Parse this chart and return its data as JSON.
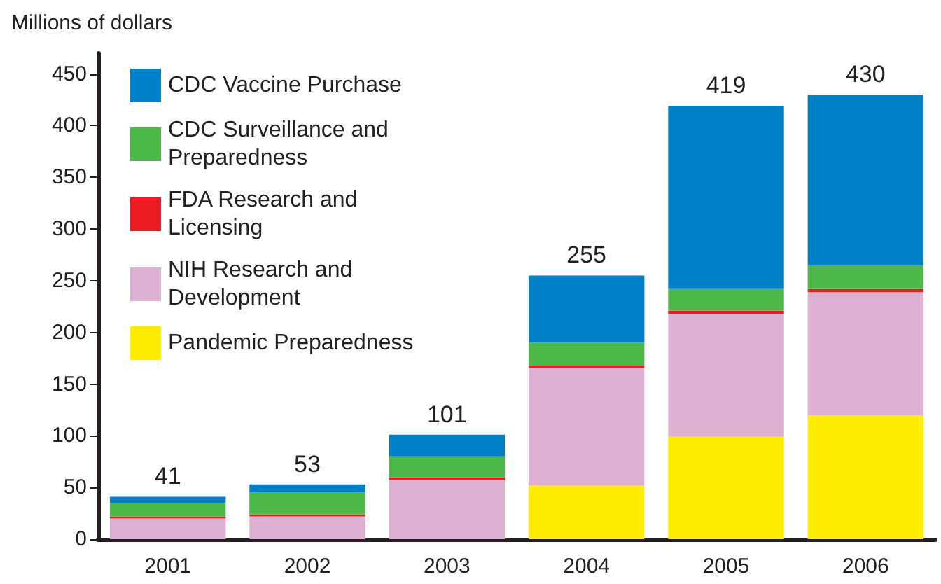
{
  "chart_data": {
    "type": "bar",
    "stacked": true,
    "ylabel": "Millions of dollars",
    "categories": [
      "2001",
      "2002",
      "2003",
      "2004",
      "2005",
      "2006"
    ],
    "series": [
      {
        "name": "Pandemic Preparedness",
        "color": "#ffed00",
        "values": [
          0,
          0,
          0,
          52,
          99,
          120
        ]
      },
      {
        "name": "NIH Research and Development",
        "color": "#deb0d2",
        "values": [
          20,
          22,
          57,
          114,
          119,
          119
        ]
      },
      {
        "name": "FDA Research and Licensing",
        "color": "#ed1c24",
        "values": [
          2,
          2,
          3,
          2,
          3,
          3
        ]
      },
      {
        "name": "CDC Surveillance and Preparedness",
        "color": "#4cb848",
        "values": [
          13,
          21,
          20,
          22,
          21,
          23
        ]
      },
      {
        "name": "CDC Vaccine Purchase",
        "color": "#0080c6",
        "values": [
          6,
          8,
          21,
          65,
          177,
          165
        ]
      }
    ],
    "totals": [
      "41",
      "53",
      "101",
      "255",
      "419",
      "430"
    ],
    "ylim": [
      0,
      470
    ],
    "yticks": [
      0,
      50,
      100,
      150,
      200,
      250,
      300,
      350,
      400,
      450
    ],
    "grid": false,
    "legend": "top left"
  }
}
